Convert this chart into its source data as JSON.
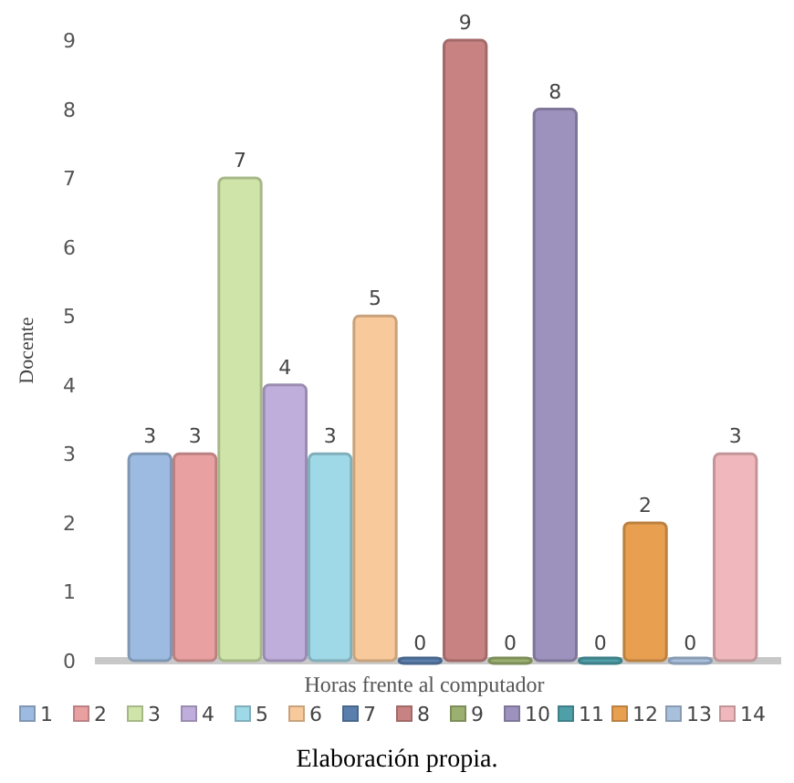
{
  "chart_data": {
    "type": "bar",
    "categories": [
      null
    ],
    "series": [
      {
        "name": "1",
        "color": "#9dbbe0",
        "values": [
          3
        ]
      },
      {
        "name": "2",
        "color": "#e8a0a0",
        "values": [
          3
        ]
      },
      {
        "name": "3",
        "color": "#cfe4a8",
        "values": [
          7
        ]
      },
      {
        "name": "4",
        "color": "#bfaedb",
        "values": [
          4
        ]
      },
      {
        "name": "5",
        "color": "#9fd8e6",
        "values": [
          3
        ]
      },
      {
        "name": "6",
        "color": "#f8c99a",
        "values": [
          5
        ]
      },
      {
        "name": "7",
        "color": "#5a7fae",
        "values": [
          0
        ]
      },
      {
        "name": "8",
        "color": "#c98282",
        "values": [
          9
        ]
      },
      {
        "name": "9",
        "color": "#9bb070",
        "values": [
          0
        ]
      },
      {
        "name": "10",
        "color": "#9d92bd",
        "values": [
          8
        ]
      },
      {
        "name": "11",
        "color": "#4e9fa8",
        "values": [
          0
        ]
      },
      {
        "name": "12",
        "color": "#e8a050",
        "values": [
          2
        ]
      },
      {
        "name": "13",
        "color": "#a8c0dc",
        "values": [
          0
        ]
      },
      {
        "name": "14",
        "color": "#f0b8bc",
        "values": [
          3
        ]
      }
    ],
    "ylim": [
      0,
      9
    ],
    "yticks": [
      0,
      1,
      2,
      3,
      4,
      5,
      6,
      7,
      8,
      9
    ],
    "ylabel": "Docente",
    "xlabel": "Horas frente al computador",
    "data_labels": true,
    "legend": "bottom",
    "grid": false,
    "annotations": [
      "Elaboración propia."
    ]
  }
}
